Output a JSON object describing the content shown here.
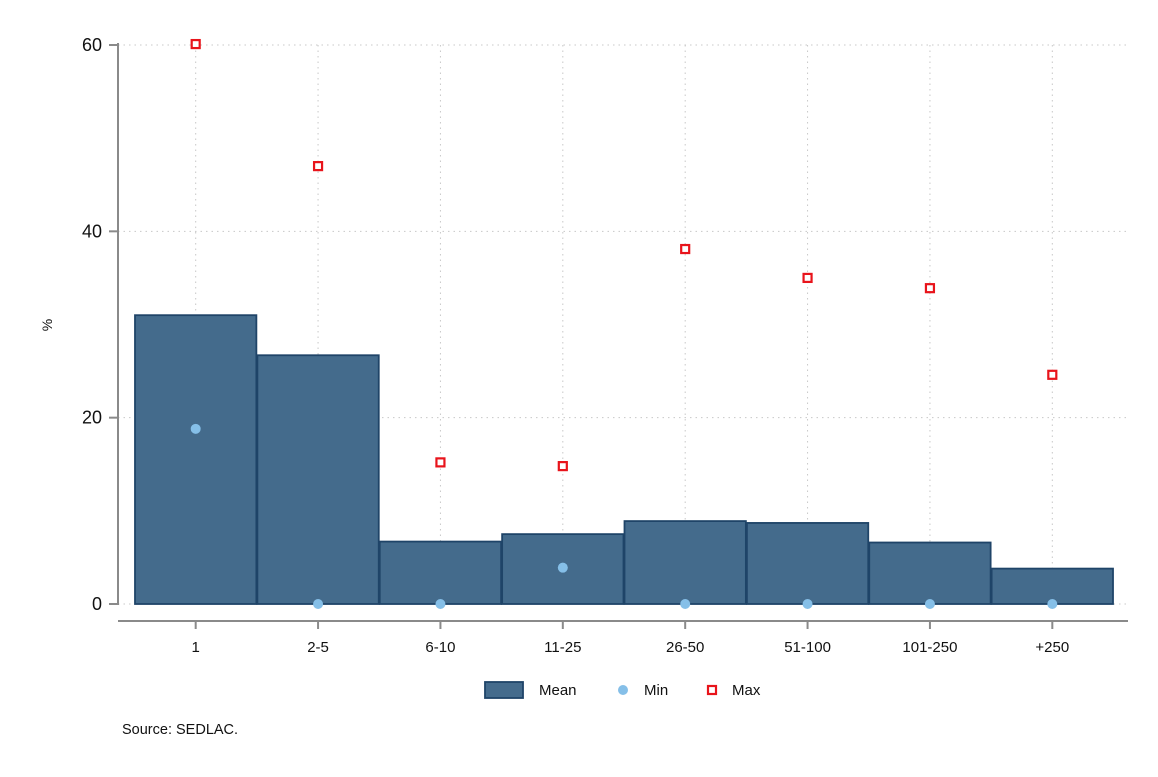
{
  "chart_data": {
    "type": "bar",
    "categories": [
      "1",
      "2-5",
      "6-10",
      "11-25",
      "26-50",
      "51-100",
      "101-250",
      "+250"
    ],
    "series": [
      {
        "name": "Mean",
        "kind": "bar",
        "values": [
          31.0,
          26.7,
          6.7,
          7.5,
          8.9,
          8.7,
          6.6,
          3.8
        ]
      },
      {
        "name": "Min",
        "kind": "point",
        "values": [
          18.8,
          0.0,
          0.0,
          3.9,
          0.0,
          0.0,
          0.0,
          0.0
        ]
      },
      {
        "name": "Max",
        "kind": "point",
        "values": [
          60.1,
          47.0,
          15.2,
          14.8,
          38.1,
          35.0,
          33.9,
          24.6
        ]
      }
    ],
    "title": "",
    "xlabel": "",
    "ylabel": "%",
    "ylim": [
      0,
      60
    ],
    "yticks": [
      "0",
      "20",
      "40",
      "60"
    ],
    "grid": true,
    "legend_position": "bottom",
    "colors": {
      "Mean": "#446b8c",
      "Mean_edge": "#1f4468",
      "Min": "#85bfe8",
      "Max": "#e8141b"
    },
    "note": "Source: SEDLAC."
  }
}
